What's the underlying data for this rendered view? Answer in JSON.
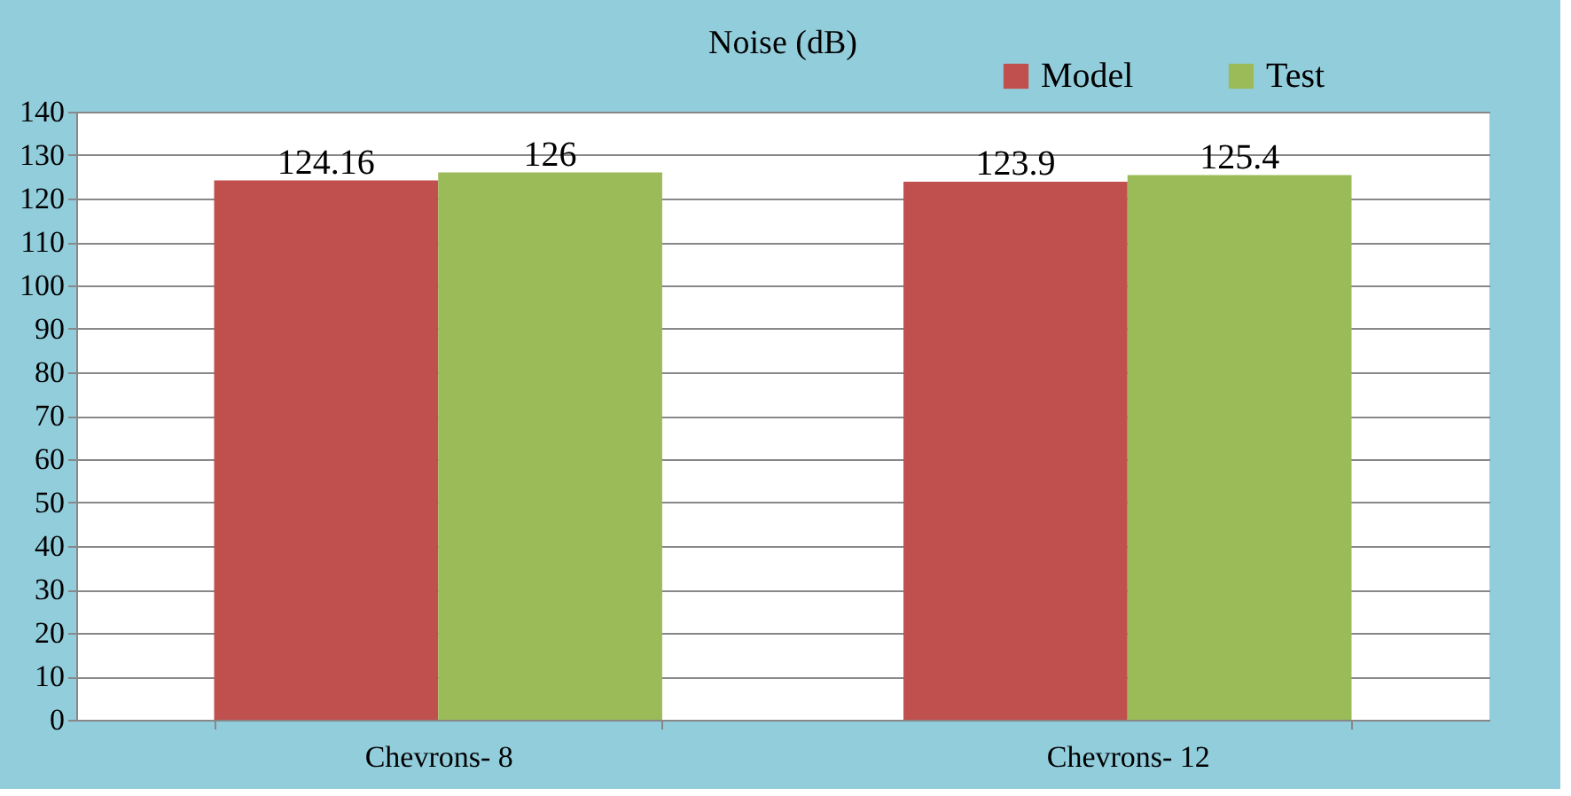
{
  "chart_data": {
    "type": "bar",
    "title": "Noise (dB)",
    "categories": [
      "Chevrons- 8",
      "Chevrons- 12"
    ],
    "series": [
      {
        "name": "Model",
        "color": "#c0504d",
        "values": [
          124.16,
          123.9
        ]
      },
      {
        "name": "Test",
        "color": "#9bbb59",
        "values": [
          126,
          125.4
        ]
      }
    ],
    "ylim": [
      0,
      140
    ],
    "yticks": [
      0,
      10,
      20,
      30,
      40,
      50,
      60,
      70,
      80,
      90,
      100,
      110,
      120,
      130,
      140
    ],
    "grid": "y",
    "legend": "top right",
    "data_labels": true
  }
}
